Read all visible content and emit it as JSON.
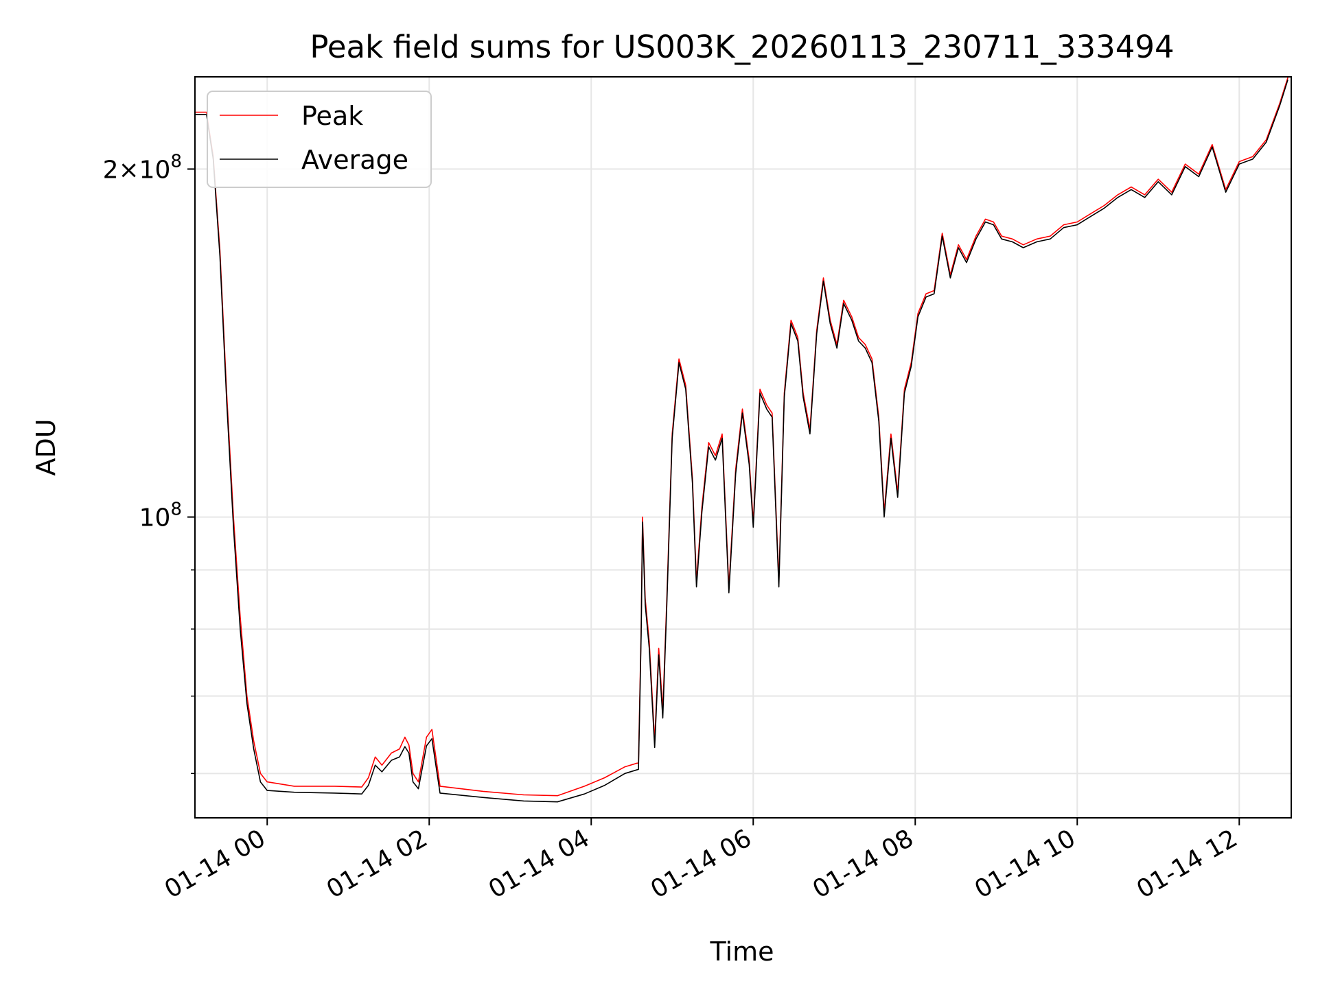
{
  "chart_data": {
    "type": "line",
    "title": "Peak field sums for US003K_20260113_230711_333494",
    "xlabel": "Time",
    "ylabel": "ADU",
    "yscale": "log",
    "ylim": [
      55000000,
      240000000
    ],
    "xlim": [
      "2026-01-13 23:07",
      "2026-01-14 12:38"
    ],
    "x_ticks": [
      "01-14 00",
      "01-14 02",
      "01-14 04",
      "01-14 06",
      "01-14 08",
      "01-14 10",
      "01-14 12"
    ],
    "y_major_ticks": [
      {
        "value": 100000000,
        "mantissa": "",
        "exponent": "8"
      },
      {
        "value": 200000000,
        "mantissa": "2",
        "exponent": "8"
      }
    ],
    "y_minor_ticks": [
      60000000,
      70000000,
      80000000,
      90000000
    ],
    "grid": true,
    "legend_position": "upper left",
    "series": [
      {
        "name": "Peak",
        "color": "#ff0000",
        "points": [
          [
            "2026-01-13 23:07",
            224000000
          ],
          [
            "2026-01-13 23:15",
            224000000
          ],
          [
            "2026-01-13 23:20",
            205000000
          ],
          [
            "2026-01-13 23:25",
            170000000
          ],
          [
            "2026-01-13 23:30",
            128000000
          ],
          [
            "2026-01-13 23:35",
            100000000
          ],
          [
            "2026-01-13 23:40",
            82000000
          ],
          [
            "2026-01-13 23:45",
            70000000
          ],
          [
            "2026-01-13 23:50",
            64000000
          ],
          [
            "2026-01-13 23:55",
            60000000
          ],
          [
            "2026-01-14 00:00",
            59000000
          ],
          [
            "2026-01-14 00:20",
            58500000
          ],
          [
            "2026-01-14 00:50",
            58500000
          ],
          [
            "2026-01-14 01:10",
            58400000
          ],
          [
            "2026-01-14 01:15",
            59500000
          ],
          [
            "2026-01-14 01:20",
            62000000
          ],
          [
            "2026-01-14 01:25",
            61000000
          ],
          [
            "2026-01-14 01:32",
            62500000
          ],
          [
            "2026-01-14 01:38",
            63000000
          ],
          [
            "2026-01-14 01:42",
            64500000
          ],
          [
            "2026-01-14 01:45",
            63500000
          ],
          [
            "2026-01-14 01:48",
            60000000
          ],
          [
            "2026-01-14 01:52",
            59000000
          ],
          [
            "2026-01-14 01:58",
            64500000
          ],
          [
            "2026-01-14 02:02",
            65500000
          ],
          [
            "2026-01-14 02:08",
            58500000
          ],
          [
            "2026-01-14 02:40",
            57900000
          ],
          [
            "2026-01-14 03:10",
            57500000
          ],
          [
            "2026-01-14 03:35",
            57400000
          ],
          [
            "2026-01-14 03:55",
            58500000
          ],
          [
            "2026-01-14 04:10",
            59500000
          ],
          [
            "2026-01-14 04:25",
            60800000
          ],
          [
            "2026-01-14 04:35",
            61300000
          ],
          [
            "2026-01-14 04:37",
            80000000
          ],
          [
            "2026-01-14 04:38",
            100000000
          ],
          [
            "2026-01-14 04:40",
            85000000
          ],
          [
            "2026-01-14 04:43",
            78000000
          ],
          [
            "2026-01-14 04:47",
            64000000
          ],
          [
            "2026-01-14 04:50",
            77000000
          ],
          [
            "2026-01-14 04:53",
            68000000
          ],
          [
            "2026-01-14 04:56",
            85000000
          ],
          [
            "2026-01-14 05:00",
            118000000
          ],
          [
            "2026-01-14 05:05",
            137000000
          ],
          [
            "2026-01-14 05:10",
            130000000
          ],
          [
            "2026-01-14 05:15",
            108000000
          ],
          [
            "2026-01-14 05:18",
            88000000
          ],
          [
            "2026-01-14 05:22",
            102000000
          ],
          [
            "2026-01-14 05:27",
            116000000
          ],
          [
            "2026-01-14 05:32",
            113000000
          ],
          [
            "2026-01-14 05:37",
            118000000
          ],
          [
            "2026-01-14 05:42",
            87000000
          ],
          [
            "2026-01-14 05:47",
            110000000
          ],
          [
            "2026-01-14 05:52",
            124000000
          ],
          [
            "2026-01-14 05:57",
            112000000
          ],
          [
            "2026-01-14 06:00",
            99000000
          ],
          [
            "2026-01-14 06:05",
            129000000
          ],
          [
            "2026-01-14 06:10",
            125000000
          ],
          [
            "2026-01-14 06:14",
            123000000
          ],
          [
            "2026-01-14 06:19",
            88000000
          ],
          [
            "2026-01-14 06:23",
            128000000
          ],
          [
            "2026-01-14 06:28",
            148000000
          ],
          [
            "2026-01-14 06:33",
            143000000
          ],
          [
            "2026-01-14 06:37",
            128000000
          ],
          [
            "2026-01-14 06:42",
            119000000
          ],
          [
            "2026-01-14 06:47",
            145000000
          ],
          [
            "2026-01-14 06:52",
            161000000
          ],
          [
            "2026-01-14 06:57",
            148000000
          ],
          [
            "2026-01-14 07:02",
            141000000
          ],
          [
            "2026-01-14 07:07",
            154000000
          ],
          [
            "2026-01-14 07:13",
            149000000
          ],
          [
            "2026-01-14 07:18",
            143000000
          ],
          [
            "2026-01-14 07:23",
            141000000
          ],
          [
            "2026-01-14 07:28",
            137000000
          ],
          [
            "2026-01-14 07:33",
            122000000
          ],
          [
            "2026-01-14 07:37",
            101000000
          ],
          [
            "2026-01-14 07:42",
            118000000
          ],
          [
            "2026-01-14 07:47",
            105000000
          ],
          [
            "2026-01-14 07:52",
            129000000
          ],
          [
            "2026-01-14 07:57",
            136000000
          ],
          [
            "2026-01-14 08:02",
            150000000
          ],
          [
            "2026-01-14 08:08",
            156000000
          ],
          [
            "2026-01-14 08:14",
            157000000
          ],
          [
            "2026-01-14 08:20",
            176000000
          ],
          [
            "2026-01-14 08:26",
            162000000
          ],
          [
            "2026-01-14 08:32",
            172000000
          ],
          [
            "2026-01-14 08:38",
            167000000
          ],
          [
            "2026-01-14 08:45",
            175000000
          ],
          [
            "2026-01-14 08:52",
            181000000
          ],
          [
            "2026-01-14 08:58",
            180000000
          ],
          [
            "2026-01-14 09:04",
            175000000
          ],
          [
            "2026-01-14 09:12",
            174000000
          ],
          [
            "2026-01-14 09:20",
            172000000
          ],
          [
            "2026-01-14 09:30",
            174000000
          ],
          [
            "2026-01-14 09:40",
            175000000
          ],
          [
            "2026-01-14 09:50",
            179000000
          ],
          [
            "2026-01-14 10:00",
            180000000
          ],
          [
            "2026-01-14 10:10",
            183000000
          ],
          [
            "2026-01-14 10:20",
            186000000
          ],
          [
            "2026-01-14 10:30",
            190000000
          ],
          [
            "2026-01-14 10:40",
            193000000
          ],
          [
            "2026-01-14 10:50",
            190000000
          ],
          [
            "2026-01-14 11:00",
            196000000
          ],
          [
            "2026-01-14 11:10",
            191000000
          ],
          [
            "2026-01-14 11:20",
            202000000
          ],
          [
            "2026-01-14 11:30",
            198000000
          ],
          [
            "2026-01-14 11:40",
            210000000
          ],
          [
            "2026-01-14 11:50",
            192000000
          ],
          [
            "2026-01-14 12:00",
            203000000
          ],
          [
            "2026-01-14 12:10",
            205000000
          ],
          [
            "2026-01-14 12:20",
            212000000
          ],
          [
            "2026-01-14 12:30",
            228000000
          ],
          [
            "2026-01-14 12:36",
            240000000
          ]
        ]
      },
      {
        "name": "Average",
        "color": "#000000",
        "points": [
          [
            "2026-01-13 23:07",
            223000000
          ],
          [
            "2026-01-13 23:15",
            223000000
          ],
          [
            "2026-01-13 23:20",
            204000000
          ],
          [
            "2026-01-13 23:25",
            168000000
          ],
          [
            "2026-01-13 23:30",
            126000000
          ],
          [
            "2026-01-13 23:35",
            98000000
          ],
          [
            "2026-01-13 23:40",
            80000000
          ],
          [
            "2026-01-13 23:45",
            69000000
          ],
          [
            "2026-01-13 23:50",
            63000000
          ],
          [
            "2026-01-13 23:55",
            59000000
          ],
          [
            "2026-01-14 00:00",
            58000000
          ],
          [
            "2026-01-14 00:20",
            57800000
          ],
          [
            "2026-01-14 00:50",
            57700000
          ],
          [
            "2026-01-14 01:10",
            57600000
          ],
          [
            "2026-01-14 01:15",
            58600000
          ],
          [
            "2026-01-14 01:20",
            61000000
          ],
          [
            "2026-01-14 01:25",
            60200000
          ],
          [
            "2026-01-14 01:32",
            61600000
          ],
          [
            "2026-01-14 01:38",
            62000000
          ],
          [
            "2026-01-14 01:42",
            63300000
          ],
          [
            "2026-01-14 01:45",
            62500000
          ],
          [
            "2026-01-14 01:48",
            59000000
          ],
          [
            "2026-01-14 01:52",
            58200000
          ],
          [
            "2026-01-14 01:58",
            63400000
          ],
          [
            "2026-01-14 02:02",
            64300000
          ],
          [
            "2026-01-14 02:08",
            57700000
          ],
          [
            "2026-01-14 02:40",
            57200000
          ],
          [
            "2026-01-14 03:10",
            56800000
          ],
          [
            "2026-01-14 03:35",
            56700000
          ],
          [
            "2026-01-14 03:55",
            57600000
          ],
          [
            "2026-01-14 04:10",
            58600000
          ],
          [
            "2026-01-14 04:25",
            60000000
          ],
          [
            "2026-01-14 04:35",
            60500000
          ],
          [
            "2026-01-14 04:37",
            79000000
          ],
          [
            "2026-01-14 04:38",
            99000000
          ],
          [
            "2026-01-14 04:40",
            84000000
          ],
          [
            "2026-01-14 04:43",
            77000000
          ],
          [
            "2026-01-14 04:47",
            63200000
          ],
          [
            "2026-01-14 04:50",
            76000000
          ],
          [
            "2026-01-14 04:53",
            67000000
          ],
          [
            "2026-01-14 04:56",
            84000000
          ],
          [
            "2026-01-14 05:00",
            117000000
          ],
          [
            "2026-01-14 05:05",
            136000000
          ],
          [
            "2026-01-14 05:10",
            129000000
          ],
          [
            "2026-01-14 05:15",
            107000000
          ],
          [
            "2026-01-14 05:18",
            87000000
          ],
          [
            "2026-01-14 05:22",
            101000000
          ],
          [
            "2026-01-14 05:27",
            115000000
          ],
          [
            "2026-01-14 05:32",
            112000000
          ],
          [
            "2026-01-14 05:37",
            117000000
          ],
          [
            "2026-01-14 05:42",
            86000000
          ],
          [
            "2026-01-14 05:47",
            109000000
          ],
          [
            "2026-01-14 05:52",
            123000000
          ],
          [
            "2026-01-14 05:57",
            111000000
          ],
          [
            "2026-01-14 06:00",
            98000000
          ],
          [
            "2026-01-14 06:05",
            128000000
          ],
          [
            "2026-01-14 06:10",
            124000000
          ],
          [
            "2026-01-14 06:14",
            122000000
          ],
          [
            "2026-01-14 06:19",
            87000000
          ],
          [
            "2026-01-14 06:23",
            127000000
          ],
          [
            "2026-01-14 06:28",
            147000000
          ],
          [
            "2026-01-14 06:33",
            142000000
          ],
          [
            "2026-01-14 06:37",
            127000000
          ],
          [
            "2026-01-14 06:42",
            118000000
          ],
          [
            "2026-01-14 06:47",
            144000000
          ],
          [
            "2026-01-14 06:52",
            160000000
          ],
          [
            "2026-01-14 06:57",
            147000000
          ],
          [
            "2026-01-14 07:02",
            140000000
          ],
          [
            "2026-01-14 07:07",
            153000000
          ],
          [
            "2026-01-14 07:13",
            148000000
          ],
          [
            "2026-01-14 07:18",
            142000000
          ],
          [
            "2026-01-14 07:23",
            140000000
          ],
          [
            "2026-01-14 07:28",
            136000000
          ],
          [
            "2026-01-14 07:33",
            121000000
          ],
          [
            "2026-01-14 07:37",
            100000000
          ],
          [
            "2026-01-14 07:42",
            117000000
          ],
          [
            "2026-01-14 07:47",
            104000000
          ],
          [
            "2026-01-14 07:52",
            128000000
          ],
          [
            "2026-01-14 07:57",
            135000000
          ],
          [
            "2026-01-14 08:02",
            149000000
          ],
          [
            "2026-01-14 08:08",
            155000000
          ],
          [
            "2026-01-14 08:14",
            156000000
          ],
          [
            "2026-01-14 08:20",
            175000000
          ],
          [
            "2026-01-14 08:26",
            161000000
          ],
          [
            "2026-01-14 08:32",
            171000000
          ],
          [
            "2026-01-14 08:38",
            166000000
          ],
          [
            "2026-01-14 08:45",
            174000000
          ],
          [
            "2026-01-14 08:52",
            180000000
          ],
          [
            "2026-01-14 08:58",
            179000000
          ],
          [
            "2026-01-14 09:04",
            174000000
          ],
          [
            "2026-01-14 09:12",
            173000000
          ],
          [
            "2026-01-14 09:20",
            171000000
          ],
          [
            "2026-01-14 09:30",
            173000000
          ],
          [
            "2026-01-14 09:40",
            174000000
          ],
          [
            "2026-01-14 09:50",
            178000000
          ],
          [
            "2026-01-14 10:00",
            179000000
          ],
          [
            "2026-01-14 10:10",
            182000000
          ],
          [
            "2026-01-14 10:20",
            185000000
          ],
          [
            "2026-01-14 10:30",
            189000000
          ],
          [
            "2026-01-14 10:40",
            192000000
          ],
          [
            "2026-01-14 10:50",
            189000000
          ],
          [
            "2026-01-14 11:00",
            195000000
          ],
          [
            "2026-01-14 11:10",
            190000000
          ],
          [
            "2026-01-14 11:20",
            201000000
          ],
          [
            "2026-01-14 11:30",
            197000000
          ],
          [
            "2026-01-14 11:40",
            209000000
          ],
          [
            "2026-01-14 11:50",
            191000000
          ],
          [
            "2026-01-14 12:00",
            202000000
          ],
          [
            "2026-01-14 12:10",
            204000000
          ],
          [
            "2026-01-14 12:20",
            211000000
          ],
          [
            "2026-01-14 12:30",
            227000000
          ],
          [
            "2026-01-14 12:36",
            239000000
          ]
        ]
      }
    ]
  }
}
